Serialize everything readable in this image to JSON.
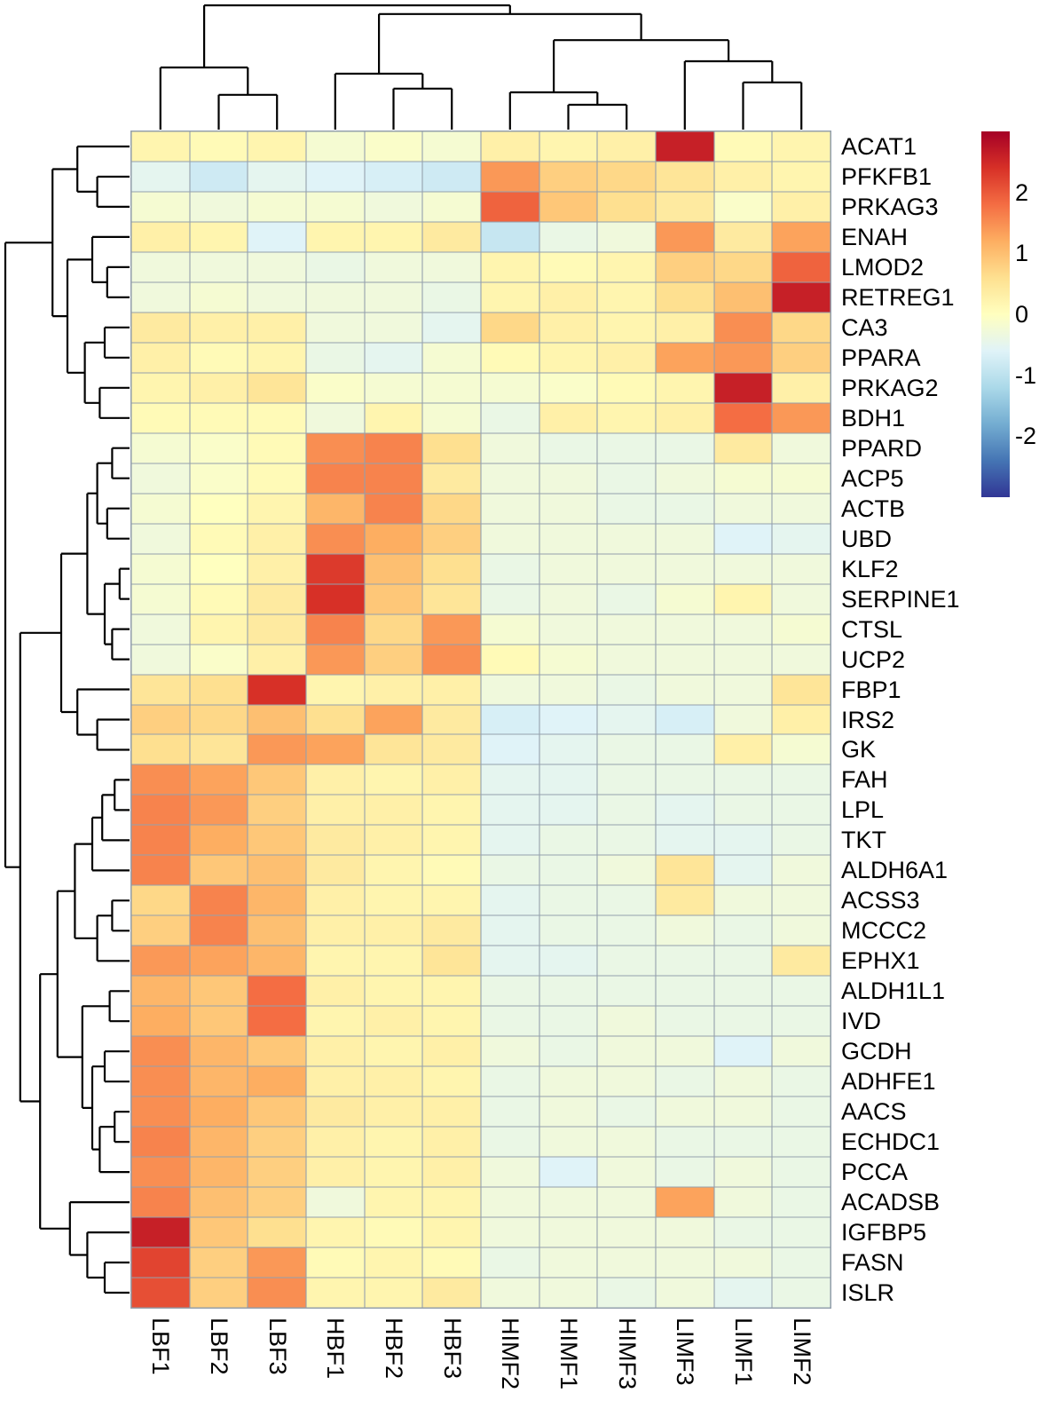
{
  "chart_data": {
    "type": "heatmap",
    "title": "",
    "columns": [
      "LBF1",
      "LBF2",
      "LBF3",
      "HBF1",
      "HBF2",
      "HBF3",
      "HIMF2",
      "HIMF1",
      "HIMF3",
      "LIMF3",
      "LIMF1",
      "LIMF2"
    ],
    "rows": [
      "ACAT1",
      "PFKFB1",
      "PRKAG3",
      "ENAH",
      "LMOD2",
      "RETREG1",
      "CA3",
      "PPARA",
      "PRKAG2",
      "BDH1",
      "PPARD",
      "ACP5",
      "ACTB",
      "UBD",
      "KLF2",
      "SERPINE1",
      "CTSL",
      "UCP2",
      "FBP1",
      "IRS2",
      "GK",
      "FAH",
      "LPL",
      "TKT",
      "ALDH6A1",
      "ACSS3",
      "MCCC2",
      "EPHX1",
      "ALDH1L1",
      "IVD",
      "GCDH",
      "ADHFE1",
      "AACS",
      "ECHDC1",
      "PCCA",
      "ACADSB",
      "IGFBP5",
      "FASN",
      "ISLR"
    ],
    "values": [
      [
        0.2,
        0.1,
        0.2,
        -0.2,
        -0.1,
        -0.2,
        0.3,
        0.2,
        0.3,
        2.6,
        0.1,
        0.2
      ],
      [
        -0.5,
        -0.8,
        -0.5,
        -0.6,
        -0.7,
        -0.8,
        1.4,
        0.8,
        0.7,
        0.5,
        0.3,
        0.2
      ],
      [
        -0.2,
        -0.3,
        -0.2,
        -0.2,
        -0.3,
        -0.2,
        1.9,
        0.9,
        0.6,
        0.4,
        -0.1,
        0.3
      ],
      [
        0.3,
        0.2,
        -0.6,
        0.2,
        0.2,
        0.4,
        -0.9,
        -0.4,
        -0.3,
        1.4,
        0.4,
        1.3
      ],
      [
        -0.3,
        -0.3,
        -0.3,
        -0.4,
        -0.3,
        -0.3,
        0.2,
        0.1,
        0.2,
        0.8,
        0.7,
        1.9
      ],
      [
        -0.3,
        -0.2,
        -0.3,
        -0.3,
        -0.3,
        -0.4,
        0.2,
        0.3,
        0.2,
        0.6,
        1.0,
        2.6
      ],
      [
        0.4,
        0.3,
        0.3,
        -0.3,
        -0.3,
        -0.5,
        0.7,
        0.3,
        0.2,
        0.3,
        1.5,
        0.7
      ],
      [
        0.3,
        0.1,
        0.2,
        -0.4,
        -0.5,
        -0.2,
        0.1,
        0.2,
        0.3,
        1.3,
        1.4,
        0.8
      ],
      [
        0.2,
        0.3,
        0.5,
        -0.1,
        -0.2,
        -0.2,
        -0.2,
        -0.1,
        0.1,
        0.2,
        2.6,
        0.3
      ],
      [
        0.1,
        0.1,
        0.1,
        -0.3,
        0.2,
        -0.2,
        -0.4,
        0.3,
        0.2,
        0.3,
        1.8,
        1.4
      ],
      [
        -0.2,
        -0.1,
        0.1,
        1.5,
        1.6,
        0.6,
        -0.3,
        -0.4,
        -0.4,
        -0.4,
        0.4,
        -0.3
      ],
      [
        -0.3,
        -0.1,
        0.1,
        1.6,
        1.6,
        0.4,
        -0.3,
        -0.3,
        -0.4,
        -0.3,
        -0.2,
        -0.2
      ],
      [
        -0.2,
        0.0,
        0.2,
        1.1,
        1.6,
        0.7,
        -0.3,
        -0.3,
        -0.4,
        -0.4,
        -0.3,
        -0.3
      ],
      [
        -0.3,
        0.1,
        0.3,
        1.5,
        1.2,
        0.8,
        -0.3,
        -0.3,
        -0.3,
        -0.3,
        -0.6,
        -0.5
      ],
      [
        -0.2,
        0.0,
        0.3,
        2.3,
        1.0,
        0.6,
        -0.4,
        -0.3,
        -0.3,
        -0.3,
        -0.3,
        -0.3
      ],
      [
        -0.2,
        0.1,
        0.4,
        2.4,
        0.9,
        0.5,
        -0.4,
        -0.3,
        -0.4,
        -0.2,
        0.2,
        -0.3
      ],
      [
        -0.3,
        0.2,
        0.4,
        1.6,
        0.7,
        1.4,
        -0.2,
        -0.3,
        -0.3,
        -0.3,
        -0.3,
        -0.2
      ],
      [
        -0.3,
        -0.1,
        0.3,
        1.4,
        0.8,
        1.5,
        0.1,
        -0.2,
        -0.3,
        -0.3,
        -0.3,
        -0.3
      ],
      [
        0.5,
        0.6,
        2.4,
        0.2,
        0.3,
        0.3,
        -0.3,
        -0.3,
        -0.4,
        -0.3,
        -0.3,
        0.5
      ],
      [
        0.8,
        0.7,
        1.0,
        0.6,
        1.3,
        0.4,
        -0.7,
        -0.6,
        -0.5,
        -0.7,
        -0.3,
        0.3
      ],
      [
        0.6,
        0.5,
        1.4,
        1.3,
        0.5,
        0.4,
        -0.6,
        -0.5,
        -0.4,
        -0.4,
        0.3,
        -0.2
      ],
      [
        1.5,
        1.3,
        0.9,
        0.3,
        0.2,
        0.3,
        -0.5,
        -0.5,
        -0.4,
        -0.4,
        -0.4,
        -0.4
      ],
      [
        1.6,
        1.4,
        0.8,
        0.3,
        0.3,
        0.2,
        -0.5,
        -0.5,
        -0.4,
        -0.5,
        -0.4,
        -0.4
      ],
      [
        1.6,
        1.2,
        0.9,
        0.4,
        0.3,
        0.2,
        -0.5,
        -0.4,
        -0.4,
        -0.5,
        -0.5,
        -0.4
      ],
      [
        1.6,
        0.9,
        1.0,
        0.4,
        0.2,
        0.1,
        -0.4,
        -0.4,
        -0.3,
        0.5,
        -0.5,
        -0.3
      ],
      [
        0.7,
        1.6,
        1.1,
        0.3,
        0.2,
        0.2,
        -0.5,
        -0.4,
        -0.4,
        0.4,
        -0.3,
        -0.3
      ],
      [
        0.8,
        1.6,
        1.0,
        0.3,
        0.3,
        0.4,
        -0.5,
        -0.4,
        -0.4,
        -0.3,
        -0.4,
        -0.3
      ],
      [
        1.4,
        1.3,
        1.1,
        0.2,
        0.2,
        0.5,
        -0.5,
        -0.5,
        -0.4,
        -0.4,
        -0.4,
        0.4
      ],
      [
        1.1,
        0.9,
        1.8,
        0.3,
        0.2,
        0.2,
        -0.4,
        -0.4,
        -0.4,
        -0.4,
        -0.4,
        -0.4
      ],
      [
        1.2,
        0.9,
        1.8,
        0.2,
        0.3,
        0.2,
        -0.4,
        -0.4,
        -0.3,
        -0.4,
        -0.4,
        -0.4
      ],
      [
        1.5,
        1.1,
        0.9,
        0.3,
        0.2,
        0.3,
        -0.3,
        -0.4,
        -0.3,
        -0.3,
        -0.6,
        -0.3
      ],
      [
        1.5,
        1.1,
        1.2,
        0.3,
        0.3,
        0.2,
        -0.4,
        -0.3,
        -0.3,
        -0.4,
        -0.3,
        -0.4
      ],
      [
        1.5,
        1.2,
        0.9,
        0.4,
        0.3,
        0.3,
        -0.4,
        -0.3,
        -0.4,
        -0.3,
        -0.3,
        -0.4
      ],
      [
        1.6,
        1.1,
        0.8,
        0.3,
        0.2,
        0.3,
        -0.4,
        -0.3,
        -0.3,
        -0.4,
        -0.4,
        -0.4
      ],
      [
        1.5,
        1.1,
        0.8,
        0.3,
        0.2,
        0.3,
        -0.3,
        -0.6,
        -0.3,
        -0.4,
        -0.3,
        -0.4
      ],
      [
        1.6,
        1.0,
        0.8,
        -0.3,
        0.2,
        0.2,
        -0.3,
        -0.3,
        -0.3,
        1.3,
        -0.3,
        -0.4
      ],
      [
        2.6,
        0.9,
        0.6,
        0.2,
        0.1,
        0.2,
        -0.3,
        -0.3,
        -0.3,
        -0.3,
        -0.4,
        -0.4
      ],
      [
        2.2,
        0.8,
        1.4,
        0.1,
        0.2,
        0.1,
        -0.4,
        -0.3,
        -0.3,
        -0.3,
        -0.3,
        -0.4
      ],
      [
        2.1,
        0.8,
        1.5,
        0.2,
        0.2,
        0.4,
        -0.3,
        -0.3,
        -0.4,
        -0.3,
        -0.5,
        -0.4
      ]
    ],
    "value_domain": [
      -3,
      3
    ],
    "colorbar": {
      "tick_values": [
        2,
        1,
        0,
        -1,
        -2
      ],
      "tick_labels": [
        "2",
        "1",
        "0",
        "-1",
        "-2"
      ]
    },
    "colormap": {
      "name": "RdYlBu_reversed",
      "stops": [
        {
          "t": 0.0,
          "color": "#313695"
        },
        {
          "t": 0.1,
          "color": "#4575b4"
        },
        {
          "t": 0.2,
          "color": "#74add1"
        },
        {
          "t": 0.3,
          "color": "#abd9e9"
        },
        {
          "t": 0.4,
          "color": "#e0f3f8"
        },
        {
          "t": 0.5,
          "color": "#ffffbf"
        },
        {
          "t": 0.6,
          "color": "#fee090"
        },
        {
          "t": 0.7,
          "color": "#fdae61"
        },
        {
          "t": 0.8,
          "color": "#f46d43"
        },
        {
          "t": 0.9,
          "color": "#d73027"
        },
        {
          "t": 1.0,
          "color": "#a50026"
        }
      ]
    },
    "grid_color": "#94a0ad",
    "dendrogram_color": "#000000",
    "col_dendrogram": {
      "h": 1.0,
      "c": [
        {
          "h": 0.5,
          "c": [
            0,
            {
              "h": 0.28,
              "c": [
                1,
                2
              ]
            }
          ]
        },
        {
          "h": 0.93,
          "c": [
            {
              "h": 0.45,
              "c": [
                3,
                {
                  "h": 0.33,
                  "c": [
                    4,
                    5
                  ]
                }
              ]
            },
            {
              "h": 0.72,
              "c": [
                {
                  "h": 0.3,
                  "c": [
                    6,
                    {
                      "h": 0.2,
                      "c": [
                        7,
                        8
                      ]
                    }
                  ]
                },
                {
                  "h": 0.55,
                  "c": [
                    9,
                    {
                      "h": 0.38,
                      "c": [
                        10,
                        11
                      ]
                    }
                  ]
                }
              ]
            }
          ]
        }
      ]
    },
    "row_dendrogram": {
      "h": 1.0,
      "c": [
        {
          "h": 0.62,
          "c": [
            {
              "h": 0.42,
              "c": [
                0,
                {
                  "h": 0.26,
                  "c": [
                    1,
                    2
                  ]
                }
              ]
            },
            {
              "h": 0.5,
              "c": [
                {
                  "h": 0.3,
                  "c": [
                    3,
                    {
                      "h": 0.18,
                      "c": [
                        4,
                        5
                      ]
                    }
                  ]
                },
                {
                  "h": 0.36,
                  "c": [
                    {
                      "h": 0.2,
                      "c": [
                        6,
                        7
                      ]
                    },
                    {
                      "h": 0.24,
                      "c": [
                        8,
                        9
                      ]
                    }
                  ]
                }
              ]
            }
          ]
        },
        {
          "h": 0.88,
          "c": [
            {
              "h": 0.55,
              "c": [
                {
                  "h": 0.34,
                  "c": [
                    {
                      "h": 0.26,
                      "c": [
                        {
                          "h": 0.14,
                          "c": [
                            10,
                            11
                          ]
                        },
                        {
                          "h": 0.18,
                          "c": [
                            12,
                            13
                          ]
                        }
                      ]
                    },
                    {
                      "h": 0.2,
                      "c": [
                        {
                          "h": 0.08,
                          "c": [
                            14,
                            15
                          ]
                        },
                        {
                          "h": 0.14,
                          "c": [
                            16,
                            17
                          ]
                        }
                      ]
                    }
                  ]
                },
                {
                  "h": 0.42,
                  "c": [
                    18,
                    {
                      "h": 0.26,
                      "c": [
                        19,
                        20
                      ]
                    }
                  ]
                }
              ]
            },
            {
              "h": 0.72,
              "c": [
                {
                  "h": 0.58,
                  "c": [
                    {
                      "h": 0.44,
                      "c": [
                        {
                          "h": 0.3,
                          "c": [
                            {
                              "h": 0.22,
                              "c": [
                                {
                                  "h": 0.12,
                                  "c": [
                                    21,
                                    22
                                  ]
                                },
                                23
                              ]
                            },
                            24
                          ]
                        },
                        {
                          "h": 0.26,
                          "c": [
                            {
                              "h": 0.14,
                              "c": [
                                25,
                                26
                              ]
                            },
                            27
                          ]
                        }
                      ]
                    },
                    {
                      "h": 0.38,
                      "c": [
                        {
                          "h": 0.16,
                          "c": [
                            28,
                            29
                          ]
                        },
                        {
                          "h": 0.3,
                          "c": [
                            {
                              "h": 0.2,
                              "c": [
                                30,
                                31
                              ]
                            },
                            {
                              "h": 0.24,
                              "c": [
                                {
                                  "h": 0.12,
                                  "c": [
                                    32,
                                    33
                                  ]
                                },
                                34
                              ]
                            }
                          ]
                        }
                      ]
                    }
                  ]
                },
                {
                  "h": 0.48,
                  "c": [
                    35,
                    {
                      "h": 0.34,
                      "c": [
                        36,
                        {
                          "h": 0.2,
                          "c": [
                            37,
                            38
                          ]
                        }
                      ]
                    }
                  ]
                }
              ]
            }
          ]
        }
      ]
    }
  }
}
